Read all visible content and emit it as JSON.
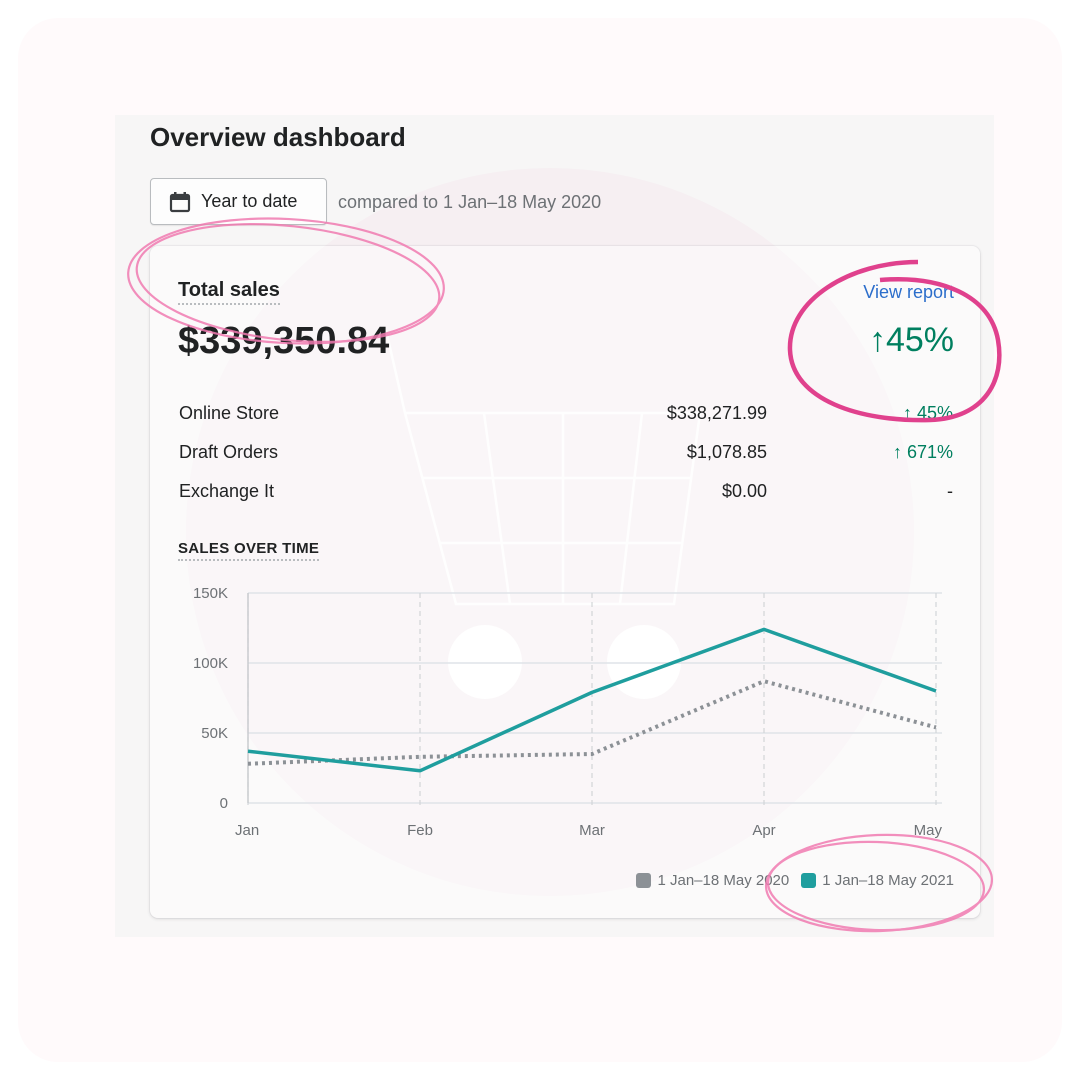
{
  "page": {
    "title": "Overview dashboard",
    "date_button": {
      "label": "Year to date",
      "icon": "calendar-icon"
    },
    "compare_text": "compared to 1 Jan–18 May 2020"
  },
  "total_sales": {
    "label": "Total sales",
    "value": "$339,350.84",
    "view_report": "View report",
    "change": "↑45%"
  },
  "channels": [
    {
      "name": "Online Store",
      "amount": "$338,271.99",
      "change": "↑ 45%"
    },
    {
      "name": "Draft Orders",
      "amount": "$1,078.85",
      "change": "↑ 671%"
    },
    {
      "name": "Exchange It",
      "amount": "$0.00",
      "change": "-"
    }
  ],
  "sales_over_time": {
    "label": "SALES OVER TIME"
  },
  "chart_data": {
    "type": "line",
    "title": "SALES OVER TIME",
    "x": [
      "Jan",
      "Feb",
      "Mar",
      "Apr",
      "May"
    ],
    "y_ticks": [
      "0",
      "50K",
      "100K",
      "150K"
    ],
    "ylim": [
      0,
      150000
    ],
    "grid": true,
    "legend": "bottom-right",
    "series": [
      {
        "name": "1 Jan–18 May 2020",
        "values": [
          28000,
          33000,
          35000,
          87000,
          54000
        ],
        "color": "#8c9196",
        "style": "dotted"
      },
      {
        "name": "1 Jan–18 May 2021",
        "values": [
          37000,
          23000,
          79000,
          124000,
          80000
        ],
        "color": "#1f9e9e",
        "style": "solid"
      }
    ]
  },
  "colors": {
    "accent_pink": "#e8559a",
    "positive": "#007f5f",
    "link": "#2c6ecb"
  }
}
